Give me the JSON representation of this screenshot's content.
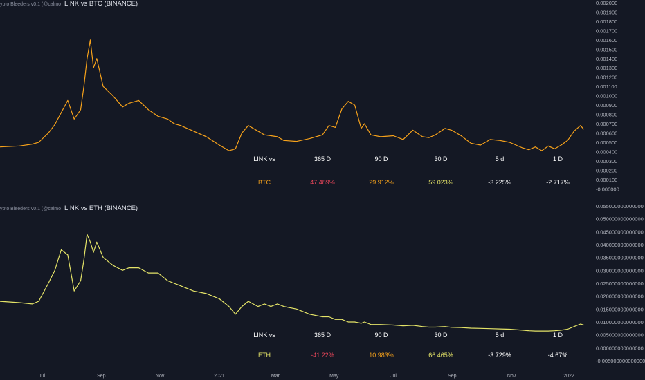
{
  "chart_data": [
    {
      "type": "line",
      "indicator_label": "ypto Bleeders v0.1 (@calmo",
      "title": "LINK vs BTC (BINANCE)",
      "line_color": "#f7a21b",
      "ylim": [
        -5e-05,
        0.002
      ],
      "yticks": [
        "0.002000",
        "0.001900",
        "0.001800",
        "0.001700",
        "0.001600",
        "0.001500",
        "0.001400",
        "0.001300",
        "0.001200",
        "0.001100",
        "0.001000",
        "0.000900",
        "0.000800",
        "0.000700",
        "0.000600",
        "0.000500",
        "0.000400",
        "0.000300",
        "0.000200",
        "0.000100",
        "-0.000000"
      ],
      "ytick_values": [
        0.002,
        0.0019,
        0.0018,
        0.0017,
        0.0016,
        0.0015,
        0.0014,
        0.0013,
        0.0012,
        0.0011,
        0.001,
        0.0009,
        0.0008,
        0.0007,
        0.0006,
        0.0005,
        0.0004,
        0.0003,
        0.0002,
        0.0001,
        0
      ],
      "x": [
        0,
        0.03,
        0.05,
        0.06,
        0.075,
        0.085,
        0.095,
        0.105,
        0.115,
        0.125,
        0.13,
        0.135,
        0.14,
        0.145,
        0.15,
        0.16,
        0.175,
        0.19,
        0.2,
        0.215,
        0.23,
        0.245,
        0.26,
        0.27,
        0.28,
        0.3,
        0.32,
        0.34,
        0.355,
        0.365,
        0.375,
        0.385,
        0.4,
        0.41,
        0.42,
        0.43,
        0.44,
        0.46,
        0.48,
        0.5,
        0.51,
        0.52,
        0.53,
        0.54,
        0.55,
        0.56,
        0.565,
        0.575,
        0.59,
        0.61,
        0.625,
        0.64,
        0.655,
        0.665,
        0.675,
        0.69,
        0.7,
        0.715,
        0.73,
        0.745,
        0.76,
        0.775,
        0.79,
        0.81,
        0.82,
        0.83,
        0.84,
        0.85,
        0.86,
        0.87,
        0.88,
        0.89,
        0.9,
        0.905
      ],
      "values": [
        0.00045,
        0.00046,
        0.00048,
        0.0005,
        0.0006,
        0.00069,
        0.00082,
        0.00095,
        0.00075,
        0.00085,
        0.0011,
        0.0014,
        0.0016,
        0.0013,
        0.0014,
        0.0011,
        0.001,
        0.00088,
        0.00092,
        0.00095,
        0.00085,
        0.00078,
        0.00075,
        0.0007,
        0.00068,
        0.00062,
        0.00056,
        0.00047,
        0.00041,
        0.00043,
        0.0006,
        0.00068,
        0.00062,
        0.00058,
        0.00057,
        0.00056,
        0.00052,
        0.00051,
        0.00054,
        0.00058,
        0.00068,
        0.00066,
        0.00086,
        0.00094,
        0.0009,
        0.00065,
        0.0007,
        0.00058,
        0.00056,
        0.00057,
        0.00053,
        0.00063,
        0.00056,
        0.00055,
        0.00058,
        0.00065,
        0.00063,
        0.00057,
        0.00049,
        0.00047,
        0.00053,
        0.00052,
        0.0005,
        0.00044,
        0.00042,
        0.00045,
        0.00041,
        0.00046,
        0.00043,
        0.00047,
        0.00052,
        0.00062,
        0.00068,
        0.00064
      ]
    },
    {
      "type": "line",
      "indicator_label": "ypto Bleeders v0.1 (@calmo",
      "title": "LINK vs ETH (BINANCE)",
      "line_color": "#e5e468",
      "ylim": [
        -0.005,
        0.055
      ],
      "yticks": [
        "0.055000000000000",
        "0.050000000000000",
        "0.045000000000000",
        "0.040000000000000",
        "0.035000000000000",
        "0.030000000000000",
        "0.025000000000000",
        "0.020000000000000",
        "0.015000000000000",
        "0.010000000000000",
        "0.005000000000000",
        "0.000000000000000",
        "-0.005000000000000"
      ],
      "ytick_values": [
        0.055,
        0.05,
        0.045,
        0.04,
        0.035,
        0.03,
        0.025,
        0.02,
        0.015,
        0.01,
        0.005,
        0,
        -0.005
      ],
      "x": [
        0,
        0.03,
        0.05,
        0.06,
        0.075,
        0.085,
        0.095,
        0.105,
        0.115,
        0.125,
        0.13,
        0.135,
        0.14,
        0.145,
        0.15,
        0.16,
        0.175,
        0.19,
        0.2,
        0.215,
        0.23,
        0.245,
        0.26,
        0.27,
        0.28,
        0.3,
        0.32,
        0.34,
        0.355,
        0.365,
        0.375,
        0.385,
        0.4,
        0.41,
        0.42,
        0.43,
        0.44,
        0.46,
        0.48,
        0.5,
        0.51,
        0.52,
        0.53,
        0.54,
        0.55,
        0.56,
        0.565,
        0.575,
        0.59,
        0.61,
        0.625,
        0.64,
        0.655,
        0.665,
        0.675,
        0.69,
        0.7,
        0.715,
        0.73,
        0.745,
        0.76,
        0.775,
        0.79,
        0.81,
        0.82,
        0.83,
        0.84,
        0.85,
        0.86,
        0.87,
        0.88,
        0.89,
        0.9,
        0.905
      ],
      "values": [
        0.018,
        0.0175,
        0.017,
        0.018,
        0.025,
        0.03,
        0.038,
        0.036,
        0.022,
        0.026,
        0.034,
        0.044,
        0.041,
        0.037,
        0.041,
        0.035,
        0.032,
        0.03,
        0.031,
        0.031,
        0.029,
        0.029,
        0.026,
        0.025,
        0.024,
        0.022,
        0.021,
        0.019,
        0.016,
        0.013,
        0.016,
        0.018,
        0.016,
        0.017,
        0.016,
        0.017,
        0.016,
        0.015,
        0.013,
        0.012,
        0.012,
        0.011,
        0.011,
        0.01,
        0.01,
        0.0095,
        0.01,
        0.009,
        0.009,
        0.0088,
        0.0085,
        0.0087,
        0.0082,
        0.008,
        0.008,
        0.0082,
        0.0079,
        0.0078,
        0.0076,
        0.0075,
        0.0074,
        0.0073,
        0.0072,
        0.0068,
        0.0066,
        0.0065,
        0.0065,
        0.0065,
        0.0066,
        0.0068,
        0.0072,
        0.0082,
        0.0092,
        0.0088
      ]
    }
  ],
  "x_axis": {
    "labels": [
      "Jul",
      "Sep",
      "Nov",
      "2021",
      "Mar",
      "May",
      "Jul",
      "Sep",
      "Nov",
      "2022"
    ],
    "positions": [
      0.065,
      0.157,
      0.248,
      0.34,
      0.427,
      0.518,
      0.61,
      0.701,
      0.793,
      0.882
    ]
  },
  "tables": [
    {
      "header": [
        "LINK vs",
        "365 D",
        "90 D",
        "30 D",
        "5 d",
        "1 D"
      ],
      "row_label": "BTC",
      "row_values": [
        "47.489%",
        "29.912%",
        "59.023%",
        "-3.225%",
        "-2.717%"
      ],
      "colors": {
        "label": "#f7a21b",
        "v1": "#e8465a",
        "v2": "#f7a21b",
        "v3": "#e5e468",
        "v4": "#ffffff",
        "v5": "#ffffff"
      }
    },
    {
      "header": [
        "LINK vs",
        "365 D",
        "90 D",
        "30 D",
        "5 d",
        "1 D"
      ],
      "row_label": "ETH",
      "row_values": [
        "-41.22%",
        "10.983%",
        "66.465%",
        "-3.729%",
        "-4.67%"
      ],
      "colors": {
        "label": "#e5e468",
        "v1": "#e8465a",
        "v2": "#f7a21b",
        "v3": "#e5e468",
        "v4": "#ffffff",
        "v5": "#ffffff"
      }
    }
  ]
}
